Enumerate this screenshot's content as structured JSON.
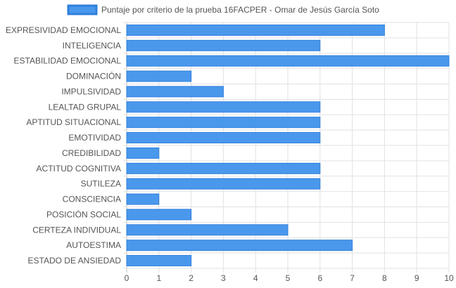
{
  "chart_data": {
    "type": "bar",
    "orientation": "horizontal",
    "legend": {
      "position": "top",
      "label": "Puntaje por criterio de la prueba 16FACPER - Omar de Jesús García Soto"
    },
    "categories": [
      "EXPRESIVIDAD EMOCIONAL",
      "INTELIGENCIA",
      "ESTABILIDAD EMOCIONAL",
      "DOMINACIÓN",
      "IMPULSIVIDAD",
      "LEALTAD GRUPAL",
      "APTITUD SITUACIONAL",
      "EMOTIVIDAD",
      "CREDIBILIDAD",
      "ACTITUD COGNITIVA",
      "SUTILEZA",
      "CONSCIENCIA",
      "POSICIÓN SOCIAL",
      "CERTEZA INDIVIDUAL",
      "AUTOESTIMA",
      "ESTADO DE ANSIEDAD"
    ],
    "series": [
      {
        "name": "Puntaje por criterio de la prueba 16FACPER - Omar de Jesús García Soto",
        "values": [
          8,
          6,
          10,
          2,
          3,
          6,
          6,
          6,
          1,
          6,
          6,
          1,
          2,
          5,
          7,
          2
        ]
      }
    ],
    "xlim": [
      0,
      10
    ],
    "xticks": [
      "0",
      "1",
      "2",
      "3",
      "4",
      "5",
      "6",
      "7",
      "8",
      "9",
      "10"
    ],
    "grid": true,
    "colors": {
      "bar_fill": "#4a98ec",
      "bar_stroke": "#2f7fdc",
      "grid": "#e2e2e2",
      "text": "#555555"
    }
  }
}
